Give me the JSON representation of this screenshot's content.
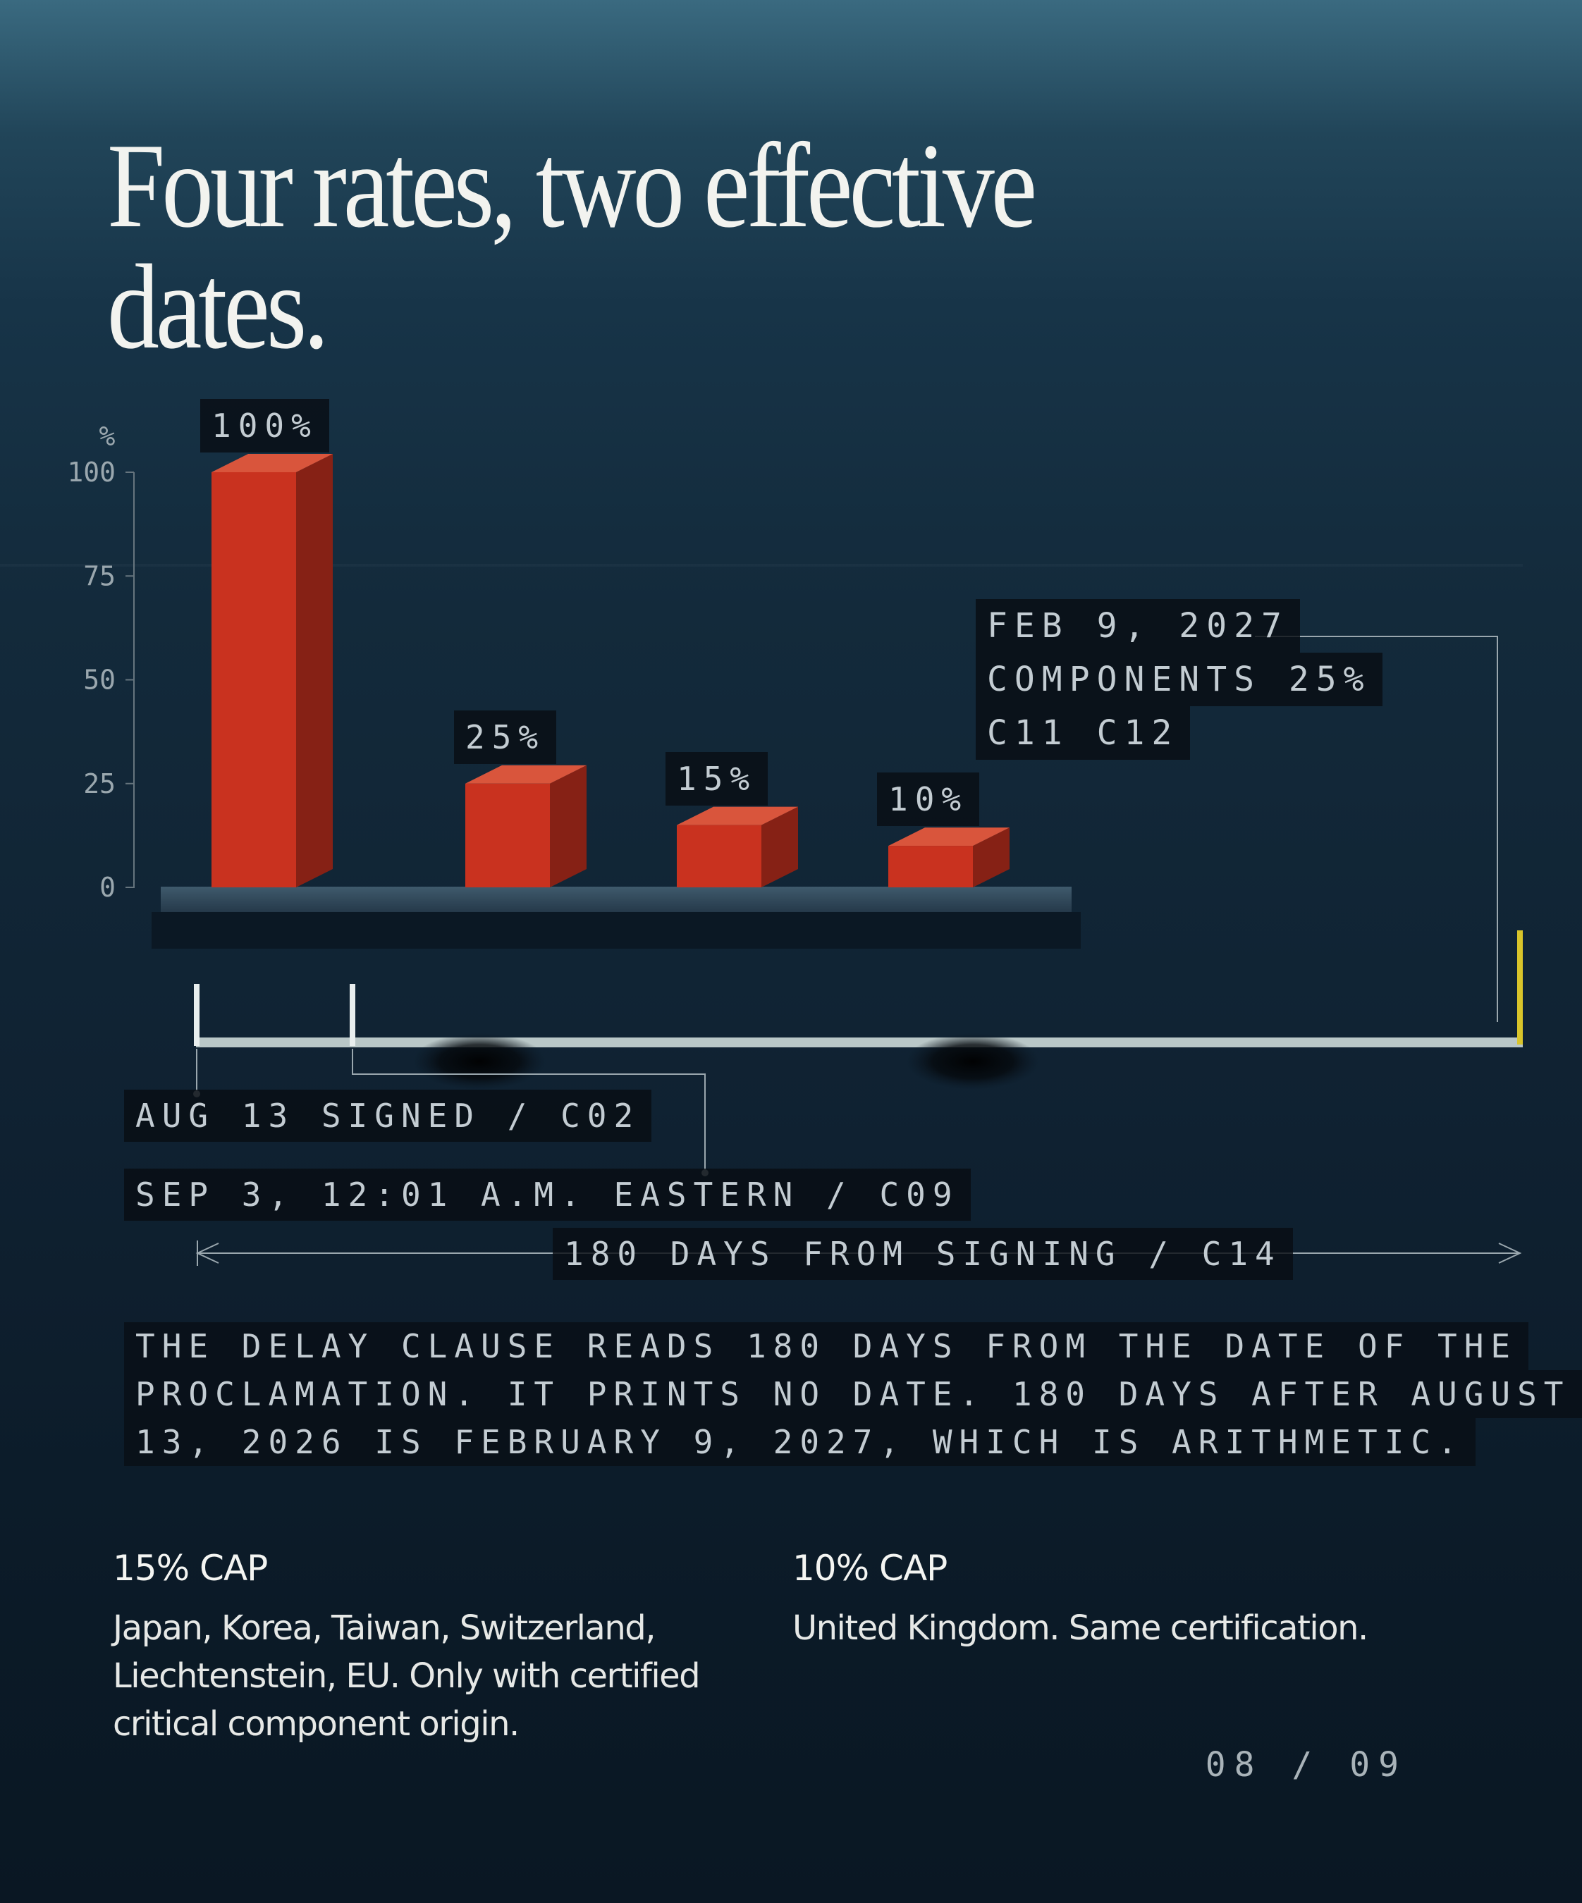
{
  "title": "Four rates, two effective dates.",
  "chart_data": {
    "type": "bar",
    "ylabel": "%",
    "ylim": [
      0,
      100
    ],
    "yticks": [
      0,
      25,
      50,
      75,
      100
    ],
    "values": [
      100,
      25,
      15,
      10
    ],
    "data_labels": [
      "100%",
      "25%",
      "15%",
      "10%"
    ],
    "bar_color": "#c9321f"
  },
  "timeline": {
    "signed": "AUG 13 SIGNED / C02",
    "effective": "SEP 3, 12:01 A.M. EASTERN / C09",
    "delay_span": "180 DAYS FROM SIGNING / C14",
    "accent": "#d8c42a"
  },
  "callout": {
    "date": "FEB 9, 2027",
    "components": "COMPONENTS 25%",
    "codes": "C11 C12"
  },
  "note": {
    "line1": "THE DELAY CLAUSE READS 180 DAYS FROM THE DATE OF THE",
    "line2": "PROCLAMATION. IT PRINTS NO DATE. 180 DAYS AFTER AUGUST",
    "line3": "13, 2026 IS FEBRUARY 9, 2027, WHICH IS ARITHMETIC."
  },
  "caps": [
    {
      "title": "15% CAP",
      "text": "Japan, Korea, Taiwan, Switzerland, Liechtenstein, EU. Only with certified critical component origin."
    },
    {
      "title": "10% CAP",
      "text": "United Kingdom. Same certification."
    }
  ],
  "page": "08 / 09"
}
